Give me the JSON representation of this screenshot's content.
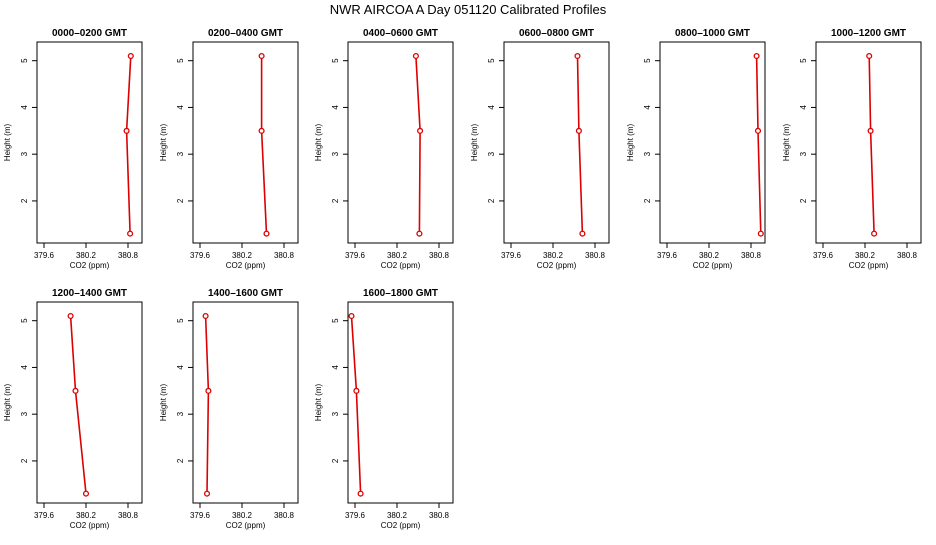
{
  "title": "NWR AIRCOA A  Day 051120  Calibrated Profiles",
  "colors": {
    "series": "#dd0000",
    "axis": "#000000",
    "background": "#ffffff"
  },
  "chart_data": {
    "type": "line",
    "title": "NWR AIRCOA A  Day 051120  Calibrated Profiles",
    "xlabel": "CO2 (ppm)",
    "ylabel": "Height (m)",
    "xlim": [
      379.5,
      381.0
    ],
    "ylim": [
      1.1,
      5.4
    ],
    "xticks": [
      379.6,
      380.2,
      380.8
    ],
    "xtick_labels": [
      "379.6",
      "380.2",
      "380.8"
    ],
    "yticks": [
      2,
      3,
      4,
      5
    ],
    "ytick_labels": [
      "2",
      "3",
      "4",
      "5"
    ],
    "grid": false,
    "panels": [
      {
        "title": "0000–0200 GMT",
        "points": [
          {
            "x": 380.83,
            "y": 1.3
          },
          {
            "x": 380.78,
            "y": 3.5
          },
          {
            "x": 380.84,
            "y": 5.1
          }
        ]
      },
      {
        "title": "0200–0400 GMT",
        "points": [
          {
            "x": 380.55,
            "y": 1.3
          },
          {
            "x": 380.48,
            "y": 3.5
          },
          {
            "x": 380.48,
            "y": 5.1
          }
        ]
      },
      {
        "title": "0400–0600 GMT",
        "points": [
          {
            "x": 380.52,
            "y": 1.3
          },
          {
            "x": 380.53,
            "y": 3.5
          },
          {
            "x": 380.47,
            "y": 5.1
          }
        ]
      },
      {
        "title": "0600–0800 GMT",
        "points": [
          {
            "x": 380.62,
            "y": 1.3
          },
          {
            "x": 380.57,
            "y": 3.5
          },
          {
            "x": 380.55,
            "y": 5.1
          }
        ]
      },
      {
        "title": "0800–1000 GMT",
        "points": [
          {
            "x": 380.94,
            "y": 1.3
          },
          {
            "x": 380.9,
            "y": 3.5
          },
          {
            "x": 380.88,
            "y": 5.1
          }
        ]
      },
      {
        "title": "1000–1200 GMT",
        "points": [
          {
            "x": 380.33,
            "y": 1.3
          },
          {
            "x": 380.28,
            "y": 3.5
          },
          {
            "x": 380.26,
            "y": 5.1
          }
        ]
      },
      {
        "title": "1200–1400 GMT",
        "points": [
          {
            "x": 380.2,
            "y": 1.3
          },
          {
            "x": 380.05,
            "y": 3.5
          },
          {
            "x": 379.98,
            "y": 5.1
          }
        ]
      },
      {
        "title": "1400–1600 GMT",
        "points": [
          {
            "x": 379.7,
            "y": 1.3
          },
          {
            "x": 379.72,
            "y": 3.5
          },
          {
            "x": 379.68,
            "y": 5.1
          }
        ]
      },
      {
        "title": "1600–1800 GMT",
        "points": [
          {
            "x": 379.68,
            "y": 1.3
          },
          {
            "x": 379.62,
            "y": 3.5
          },
          {
            "x": 379.55,
            "y": 5.1
          }
        ]
      }
    ]
  }
}
